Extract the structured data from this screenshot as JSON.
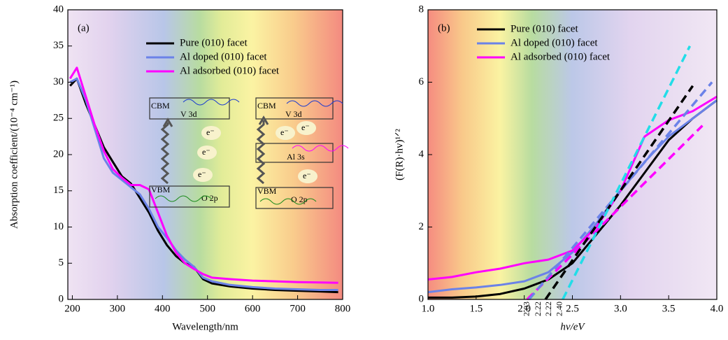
{
  "chart_data": [
    {
      "type": "line",
      "panel_label": "(a)",
      "x_label": "Wavelength/nm",
      "y_label": "Absorption coefficient/(10⁻⁴ cm⁻¹)",
      "xlim": [
        190,
        800
      ],
      "xticks": [
        200,
        300,
        400,
        500,
        600,
        700,
        800
      ],
      "ylim": [
        0,
        40
      ],
      "yticks": [
        0,
        5,
        10,
        15,
        20,
        25,
        30,
        35,
        40
      ],
      "legend": "upper center",
      "x": [
        195,
        210,
        230,
        250,
        270,
        290,
        310,
        330,
        350,
        370,
        390,
        410,
        430,
        450,
        470,
        490,
        510,
        550,
        600,
        650,
        700,
        750,
        790
      ],
      "series": [
        {
          "name": "Pure (010) facet",
          "color": "#000000",
          "values": [
            29.5,
            30.5,
            27,
            24,
            21,
            19,
            17,
            16,
            14,
            12,
            9.5,
            7.5,
            6,
            5,
            4.5,
            2.8,
            2.2,
            1.8,
            1.5,
            1.3,
            1.2,
            1.1,
            1.0
          ]
        },
        {
          "name": "Al doped (010) facet",
          "color": "#6b82e8",
          "values": [
            30,
            30.5,
            27.5,
            23.5,
            19.5,
            17.5,
            16.5,
            15.5,
            14.5,
            12.5,
            10,
            8.5,
            6.8,
            5.5,
            4.5,
            3,
            2.5,
            2.0,
            1.7,
            1.5,
            1.4,
            1.3,
            1.3
          ]
        },
        {
          "name": "Al adsorbed (010) facet",
          "color": "#ff00ff",
          "values": [
            30.5,
            32,
            28,
            24,
            20.5,
            18,
            16.8,
            15.8,
            15.8,
            15.2,
            12,
            8.8,
            6.5,
            5,
            4.2,
            3.5,
            3.0,
            2.8,
            2.6,
            2.5,
            2.4,
            2.35,
            2.3
          ]
        }
      ],
      "inset": {
        "cbm": "CBM",
        "vbm": "VBM",
        "v3d": "V 3d",
        "o2p": "O 2p",
        "al3s": "Al 3s",
        "electron": "e⁻"
      }
    },
    {
      "type": "line",
      "panel_label": "(b)",
      "x_label": "hv/eV",
      "y_label": "(F(R)·hv)¹ᐟ²",
      "xlim": [
        1.0,
        4.0
      ],
      "xticks": [
        {
          "value": 1.0,
          "label": "1.0"
        },
        {
          "value": 1.5,
          "label": "1.5"
        },
        {
          "value": 2.0,
          "label": "2.0"
        },
        {
          "value": 2.5,
          "label": "2.5"
        },
        {
          "value": 3.0,
          "label": "3.0"
        },
        {
          "value": 3.5,
          "label": "3.5"
        },
        {
          "value": 4.0,
          "label": "4.0"
        }
      ],
      "ylim": [
        0,
        8
      ],
      "yticks": [
        0,
        2,
        4,
        6,
        8
      ],
      "legend": "upper center",
      "x": [
        1.0,
        1.25,
        1.5,
        1.75,
        2.0,
        2.25,
        2.5,
        2.75,
        3.0,
        3.25,
        3.5,
        3.75,
        4.0
      ],
      "series": [
        {
          "name": "Pure (010) facet",
          "color": "#000000",
          "values": [
            0.05,
            0.05,
            0.08,
            0.15,
            0.3,
            0.55,
            1.0,
            1.8,
            2.6,
            3.5,
            4.4,
            5.0,
            5.5
          ]
        },
        {
          "name": "Al doped (010) facet",
          "color": "#6b82e8",
          "values": [
            0.2,
            0.28,
            0.33,
            0.4,
            0.5,
            0.75,
            1.3,
            2.1,
            3.0,
            3.8,
            4.5,
            5.0,
            5.5
          ]
        },
        {
          "name": "Al adsorbed (010) facet",
          "color": "#ff00ff",
          "values": [
            0.55,
            0.62,
            0.75,
            0.85,
            1.0,
            1.1,
            1.35,
            2.0,
            3.0,
            4.5,
            4.95,
            5.2,
            5.6
          ]
        }
      ],
      "fit_lines": [
        {
          "color": "#ff00ff",
          "x": [
            2.03,
            3.85
          ],
          "y": [
            0,
            4.8
          ]
        },
        {
          "color": "#6b82e8",
          "x": [
            2.05,
            3.95
          ],
          "y": [
            0,
            6.0
          ]
        },
        {
          "color": "#000000",
          "x": [
            2.22,
            3.75
          ],
          "y": [
            0,
            5.9
          ]
        },
        {
          "color": "#22dde8",
          "x": [
            2.4,
            3.72
          ],
          "y": [
            0,
            7.0
          ]
        }
      ],
      "intercept_labels": [
        {
          "text": "2.03",
          "color": "#ff00ff",
          "at": 2.03
        },
        {
          "text": "2.22",
          "color": "#000000",
          "at": 2.15
        },
        {
          "text": "2.22",
          "color": "#000000",
          "at": 2.26
        },
        {
          "text": "2.40",
          "color": "#22dde8",
          "at": 2.37
        }
      ]
    }
  ]
}
